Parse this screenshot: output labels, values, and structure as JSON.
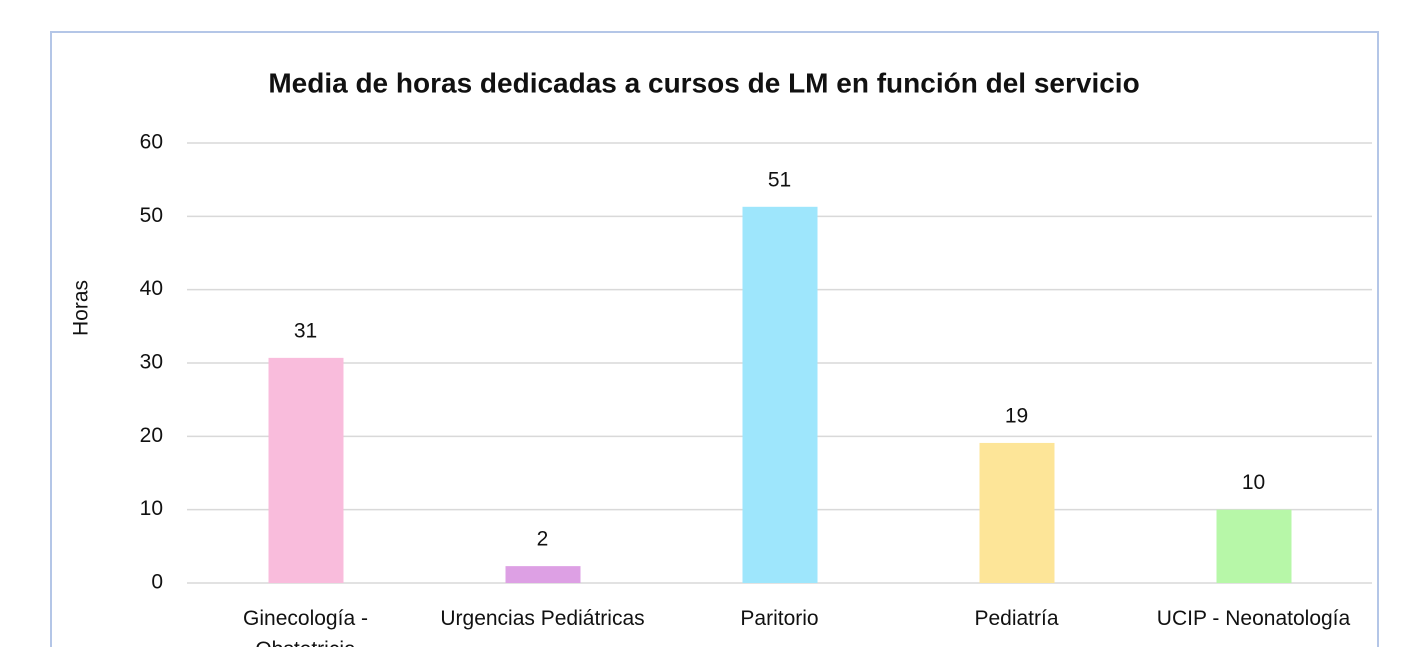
{
  "chart_data": {
    "type": "bar",
    "title": "Media de horas dedicadas a cursos de LM en función del servicio",
    "y_label": "Horas",
    "categories": [
      "Ginecología - Obstetricia",
      "Urgencias Pediátricas",
      "Paritorio",
      "Pediatría",
      "UCIP - Neonatología"
    ],
    "values": [
      30.7,
      2.3,
      51.3,
      19.1,
      10
    ],
    "value_labels": [
      "31",
      "2",
      "51",
      "19",
      "10"
    ],
    "colors": [
      "#f9bcdc",
      "#dda0e4",
      "#9ee6fc",
      "#fde598",
      "#b7f7a8"
    ],
    "ylim": [
      0,
      60
    ],
    "yticks": [
      0,
      10,
      20,
      30,
      40,
      50,
      60
    ],
    "grid": true
  }
}
